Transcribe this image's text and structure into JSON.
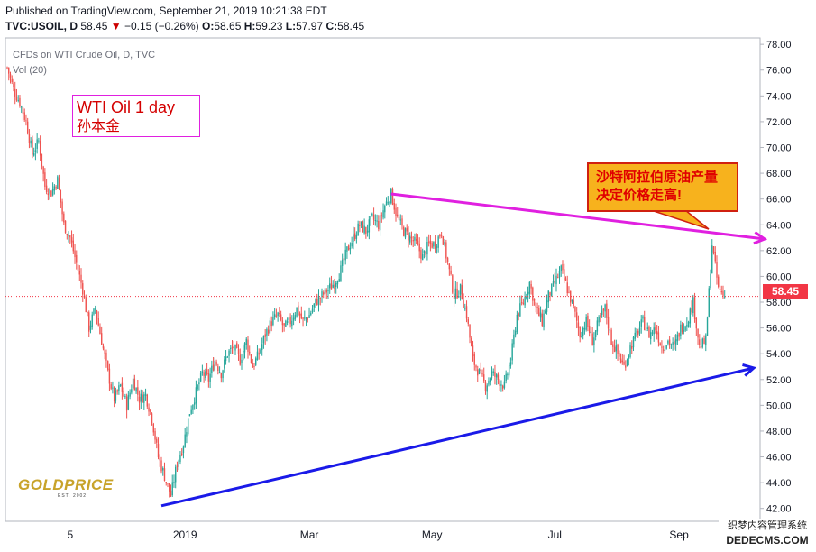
{
  "header": {
    "published": "Published on TradingView.com, September 21, 2019 10:21:38 EDT",
    "symbol": "TVC:USOIL, D",
    "last": "58.45",
    "change_arrow": "▼",
    "change": "−0.15 (−0.26%)",
    "o_label": "O:",
    "o": "58.65",
    "h_label": "H:",
    "h": "59.23",
    "l_label": "L:",
    "l": "57.97",
    "c_label": "C:",
    "c": "58.45"
  },
  "legend": {
    "title": "CFDs on WTI Crude Oil, D, TVC",
    "volume": "Vol (20)"
  },
  "annotations": {
    "box_line1": "WTI Oil 1 day",
    "box_line2": "孙本金",
    "callout_line1": "沙特阿拉伯原油产量",
    "callout_line2": "决定价格走高!"
  },
  "logo": {
    "text": "GOLDPRICE",
    "sub": "EST. 2002"
  },
  "watermark": {
    "line1": "织梦内容管理系统",
    "line2": "DEDECMS.COM"
  },
  "colors": {
    "up": "#26a69a",
    "down": "#ef5350",
    "resistance_line": "#e020e0",
    "support_line": "#1a1ae8",
    "price_badge": "#f23645",
    "callout_fill": "#f7b21d"
  },
  "chart_data": {
    "type": "candlestick",
    "title": "CFDs on WTI Crude Oil, D, TVC",
    "ylim": [
      41,
      78.5
    ],
    "y_ticks": [
      "78.00",
      "76.00",
      "74.00",
      "72.00",
      "70.00",
      "68.00",
      "66.00",
      "64.00",
      "62.00",
      "60.00",
      "58.00",
      "56.00",
      "54.00",
      "52.00",
      "50.00",
      "48.00",
      "46.00",
      "44.00",
      "42.00"
    ],
    "x_ticks": [
      "5",
      "2019",
      "Mar",
      "May",
      "Jul",
      "Sep"
    ],
    "last_price": 58.45,
    "price_path": [
      [
        0,
        76.2
      ],
      [
        4,
        74.5
      ],
      [
        8,
        73.5
      ],
      [
        12,
        72.0
      ],
      [
        16,
        69.5
      ],
      [
        20,
        70.5
      ],
      [
        24,
        67.0
      ],
      [
        28,
        66.5
      ],
      [
        32,
        67.5
      ],
      [
        36,
        64.0
      ],
      [
        40,
        63.0
      ],
      [
        44,
        61.0
      ],
      [
        48,
        59.0
      ],
      [
        52,
        56.0
      ],
      [
        56,
        57.5
      ],
      [
        60,
        55.0
      ],
      [
        64,
        52.5
      ],
      [
        68,
        50.5
      ],
      [
        72,
        51.5
      ],
      [
        76,
        50.0
      ],
      [
        80,
        52.0
      ],
      [
        84,
        50.5
      ],
      [
        88,
        50.8
      ],
      [
        92,
        49.0
      ],
      [
        96,
        46.0
      ],
      [
        100,
        44.5
      ],
      [
        104,
        43.0
      ],
      [
        108,
        45.5
      ],
      [
        112,
        47.0
      ],
      [
        116,
        49.5
      ],
      [
        120,
        51.0
      ],
      [
        124,
        52.5
      ],
      [
        128,
        52.0
      ],
      [
        132,
        53.5
      ],
      [
        136,
        52.5
      ],
      [
        140,
        54.0
      ],
      [
        144,
        54.5
      ],
      [
        148,
        53.5
      ],
      [
        152,
        55.0
      ],
      [
        156,
        53.0
      ],
      [
        160,
        54.0
      ],
      [
        164,
        55.5
      ],
      [
        168,
        56.5
      ],
      [
        172,
        57.0
      ],
      [
        176,
        56.0
      ],
      [
        180,
        56.5
      ],
      [
        184,
        57.5
      ],
      [
        188,
        56.5
      ],
      [
        192,
        57.0
      ],
      [
        196,
        58.0
      ],
      [
        200,
        58.5
      ],
      [
        204,
        59.0
      ],
      [
        208,
        59.5
      ],
      [
        212,
        60.5
      ],
      [
        216,
        62.0
      ],
      [
        220,
        63.0
      ],
      [
        224,
        64.0
      ],
      [
        228,
        63.5
      ],
      [
        232,
        64.5
      ],
      [
        236,
        64.0
      ],
      [
        240,
        65.5
      ],
      [
        244,
        66.4
      ],
      [
        248,
        64.5
      ],
      [
        252,
        63.5
      ],
      [
        256,
        63.0
      ],
      [
        260,
        62.5
      ],
      [
        264,
        61.5
      ],
      [
        268,
        62.5
      ],
      [
        272,
        62.5
      ],
      [
        276,
        63.5
      ],
      [
        280,
        61.0
      ],
      [
        284,
        58.5
      ],
      [
        288,
        59.0
      ],
      [
        292,
        57.0
      ],
      [
        296,
        53.5
      ],
      [
        300,
        52.5
      ],
      [
        304,
        51.5
      ],
      [
        308,
        52.5
      ],
      [
        312,
        52.0
      ],
      [
        316,
        51.5
      ],
      [
        320,
        53.5
      ],
      [
        324,
        57.0
      ],
      [
        328,
        58.0
      ],
      [
        332,
        59.5
      ],
      [
        336,
        57.5
      ],
      [
        340,
        56.5
      ],
      [
        344,
        58.5
      ],
      [
        348,
        59.5
      ],
      [
        352,
        60.5
      ],
      [
        356,
        59.0
      ],
      [
        360,
        57.5
      ],
      [
        364,
        55.5
      ],
      [
        368,
        56.5
      ],
      [
        372,
        55.0
      ],
      [
        376,
        56.5
      ],
      [
        380,
        57.5
      ],
      [
        384,
        55.0
      ],
      [
        388,
        54.0
      ],
      [
        392,
        53.0
      ],
      [
        396,
        54.5
      ],
      [
        400,
        55.5
      ],
      [
        404,
        56.5
      ],
      [
        408,
        55.5
      ],
      [
        412,
        56.0
      ],
      [
        416,
        54.5
      ],
      [
        420,
        55.0
      ],
      [
        424,
        54.5
      ],
      [
        428,
        56.0
      ],
      [
        432,
        56.5
      ],
      [
        436,
        58.0
      ],
      [
        440,
        54.5
      ],
      [
        444,
        55.0
      ],
      [
        448,
        62.5
      ],
      [
        452,
        59.0
      ],
      [
        456,
        58.45
      ]
    ],
    "trendlines": [
      {
        "name": "resistance",
        "from": [
          244,
          66.4
        ],
        "to": [
          456,
          62.9
        ]
      },
      {
        "name": "support",
        "from": [
          98,
          42.2
        ],
        "to": [
          456,
          52.9
        ]
      }
    ]
  }
}
